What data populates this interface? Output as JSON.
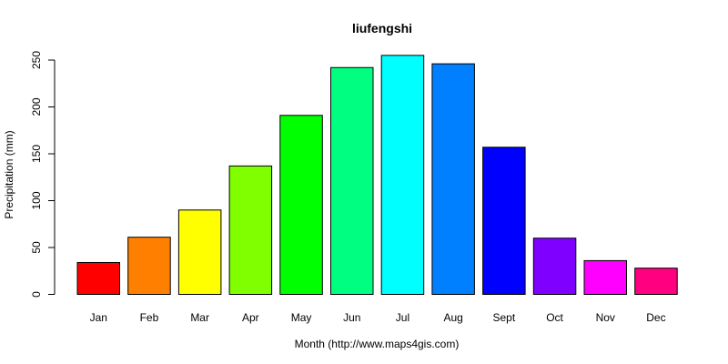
{
  "chart_data": {
    "type": "bar",
    "title": "liufengshi",
    "xlabel": "Month (http://www.maps4gis.com)",
    "ylabel": "Precipitation (mm)",
    "ylim": [
      0,
      260
    ],
    "yticks": [
      0,
      50,
      100,
      150,
      200,
      250
    ],
    "grid": false,
    "categories": [
      "Jan",
      "Feb",
      "Mar",
      "Apr",
      "May",
      "Jun",
      "Jul",
      "Aug",
      "Sept",
      "Oct",
      "Nov",
      "Dec"
    ],
    "values": [
      34,
      61,
      90,
      137,
      191,
      242,
      255,
      246,
      157,
      60,
      36,
      28
    ],
    "colors": [
      "#FF0000",
      "#FF8000",
      "#FFFF00",
      "#80FF00",
      "#00FF00",
      "#00FF80",
      "#00FFFF",
      "#0080FF",
      "#0000FF",
      "#8000FF",
      "#FF00FF",
      "#FF0080"
    ]
  }
}
